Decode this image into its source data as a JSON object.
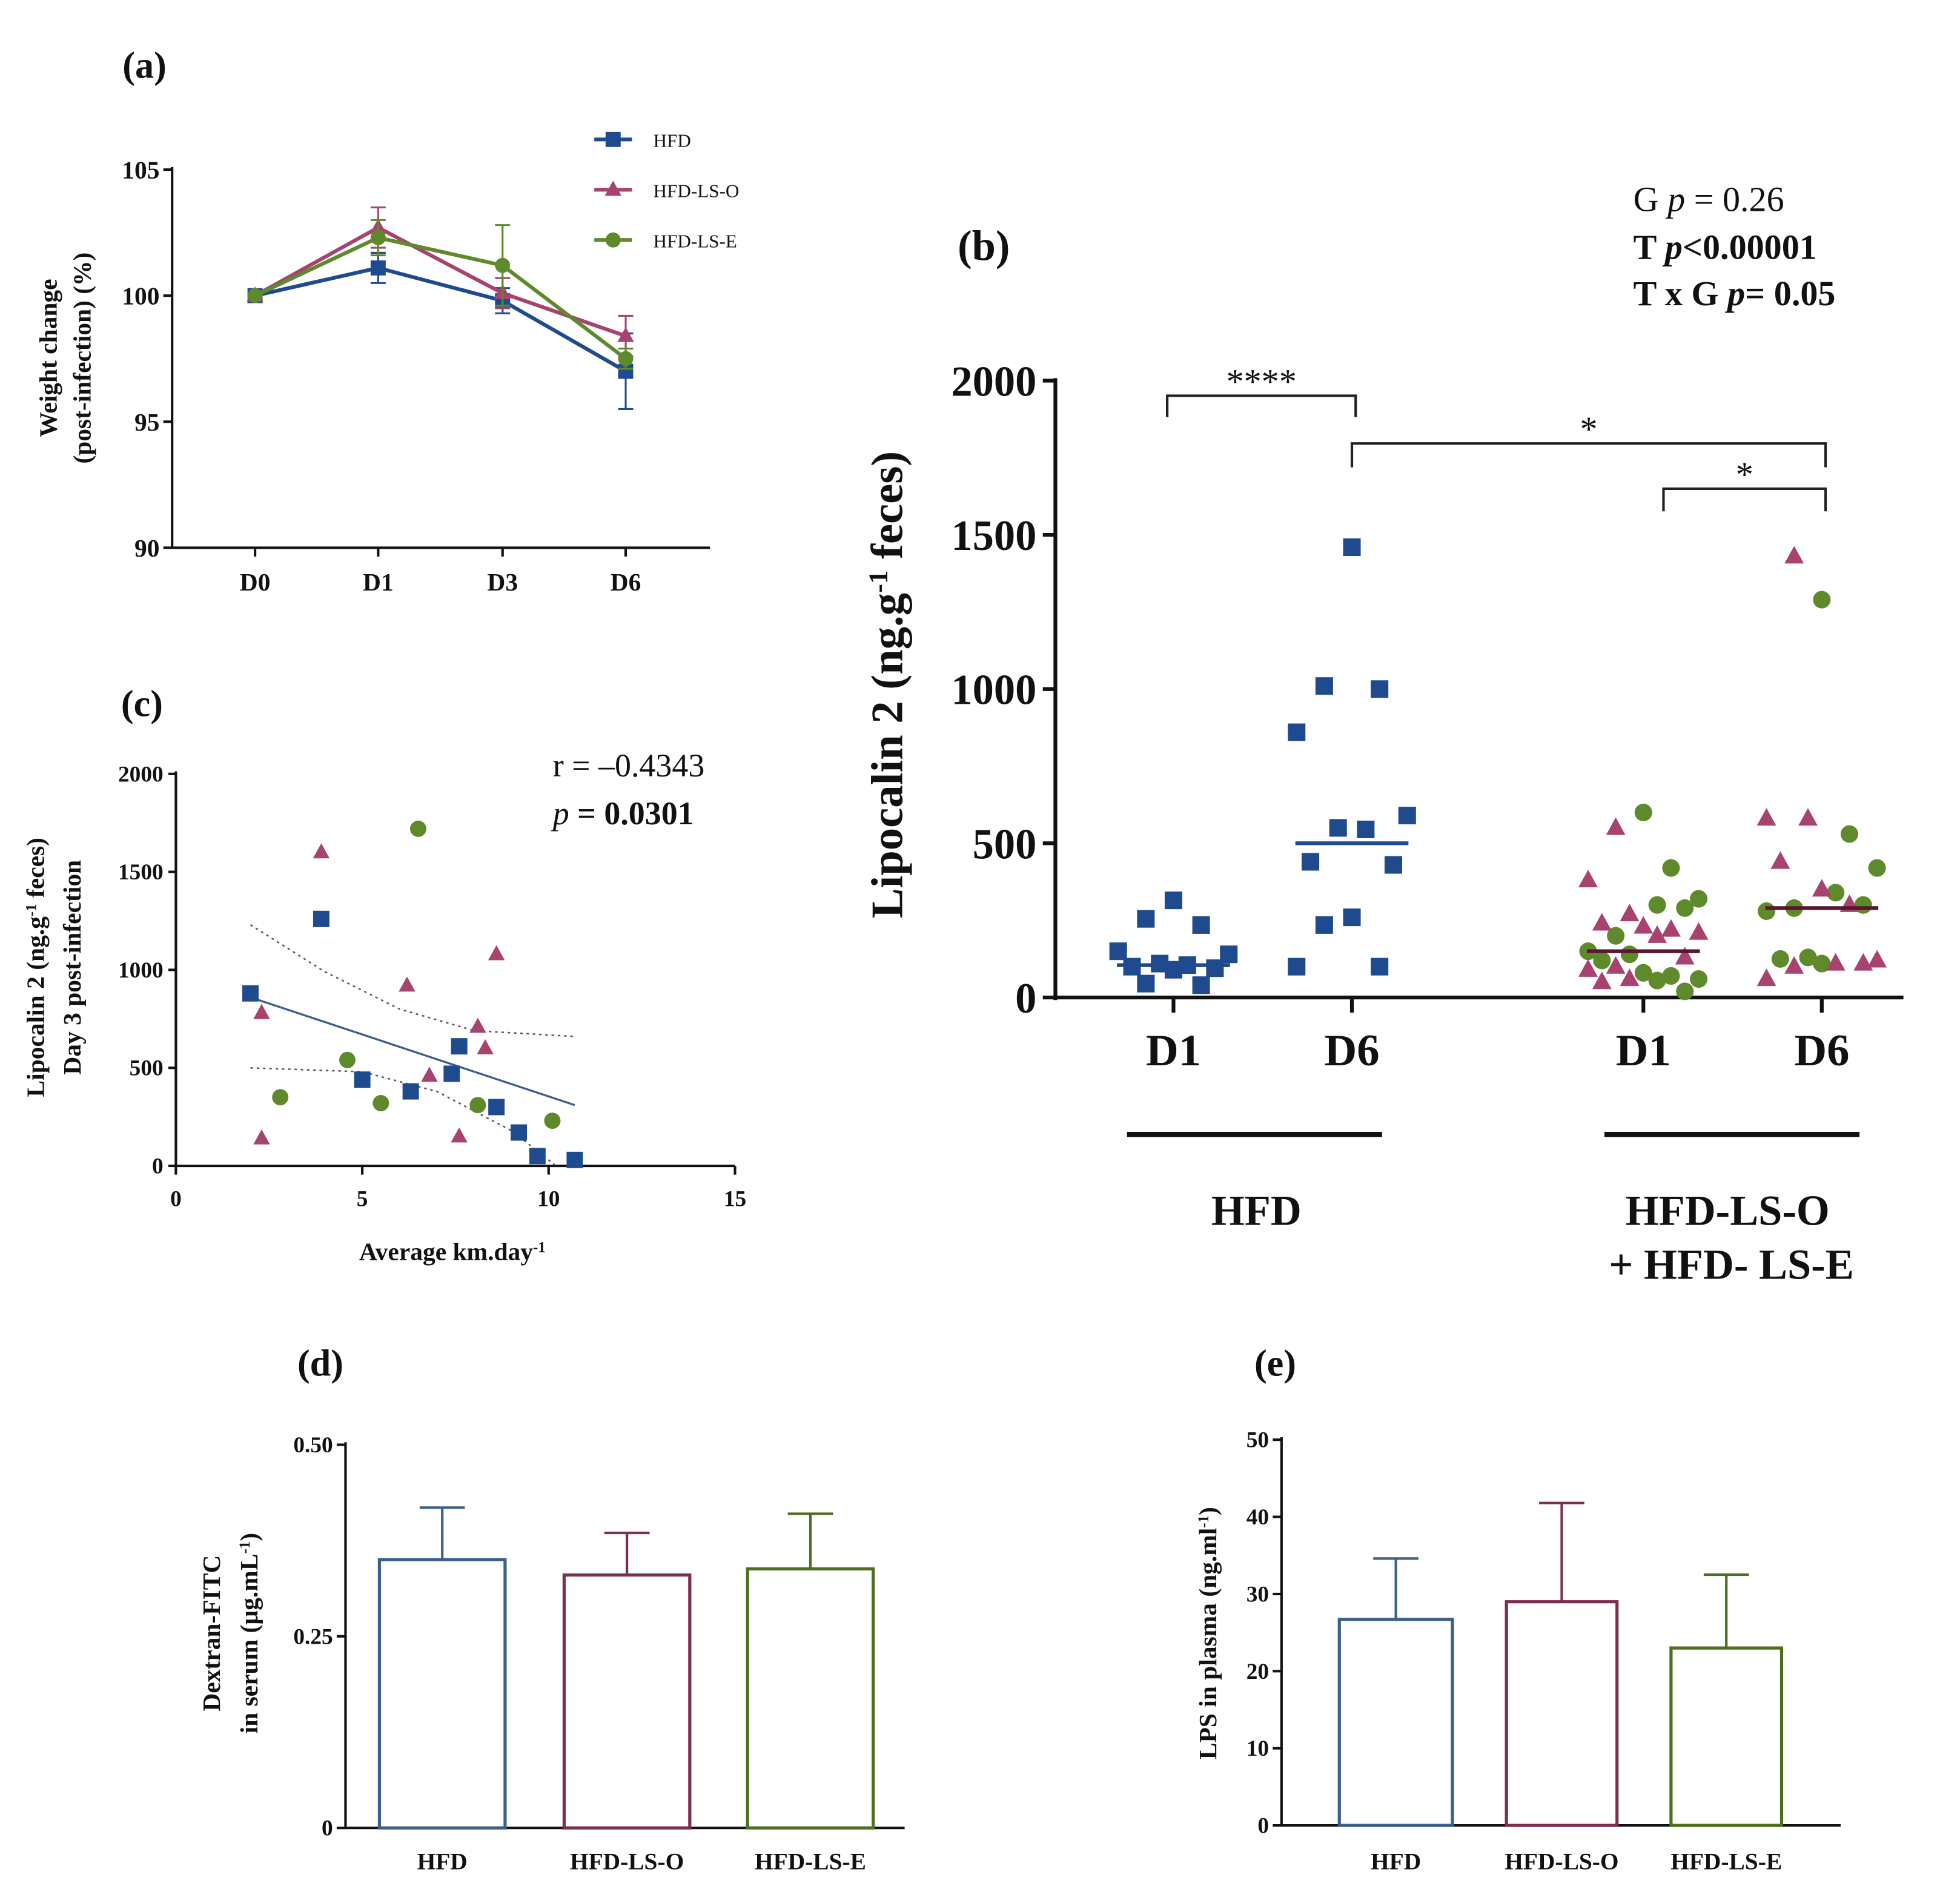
{
  "colors": {
    "hfd": "#1f4b8e",
    "lso": "#a8436f",
    "lse": "#5e8a2c",
    "hfd_bar": "#3b6089",
    "lso_bar": "#7b2f50",
    "lse_bar": "#4f6e1f",
    "axis": "#111111"
  },
  "chart_data": [
    {
      "panel": "(a)",
      "type": "line",
      "categories": [
        "D0",
        "D1",
        "D3",
        "D6"
      ],
      "ylabel_line1": "Weight change",
      "ylabel_line2": "(post-infection) (%)",
      "ylim": [
        90,
        105
      ],
      "yticks": [
        "90",
        "95",
        "100",
        "105"
      ],
      "legend_position": "top-right",
      "series": [
        {
          "name": "HFD",
          "marker": "square",
          "values": [
            100,
            101.1,
            99.8,
            97.0
          ],
          "errors": [
            0,
            0.6,
            0.5,
            1.5
          ]
        },
        {
          "name": "HFD-LS-O",
          "marker": "triangle",
          "values": [
            100,
            102.7,
            100.1,
            98.4
          ],
          "errors": [
            0,
            0.8,
            0.6,
            0.8
          ]
        },
        {
          "name": "HFD-LS-E",
          "marker": "circle",
          "values": [
            100,
            102.3,
            101.2,
            97.5
          ],
          "errors": [
            0,
            0.7,
            1.6,
            0.4
          ]
        }
      ]
    },
    {
      "panel": "(b)",
      "type": "scatter",
      "ylabel_main": "Lipocalin 2 (ng.g",
      "ylabel_sup": "-1",
      "ylabel_end": " feces)",
      "ylim": [
        0,
        2000
      ],
      "yticks": [
        "0",
        "500",
        "1000",
        "1500",
        "2000"
      ],
      "categories": [
        "D1",
        "D6",
        "D1",
        "D6"
      ],
      "groups": [
        "HFD",
        "HFD-LS-O",
        "+ HFD- LS-E"
      ],
      "stats": {
        "g": "G ",
        "g_p": "p",
        "g_val": " = 0.26",
        "t": "T ",
        "t_p": "p",
        "t_val": "<0.00001",
        "txg": "T x G ",
        "txg_p": "p",
        "txg_val": "= 0.05"
      },
      "significance": [
        {
          "label": "****",
          "from": 0,
          "to": 1
        },
        {
          "label": "*",
          "from": 1,
          "to": 3
        },
        {
          "label": "*",
          "from": 2,
          "to": 3
        }
      ],
      "series": [
        {
          "name": "HFD D1",
          "marker": "square",
          "median": 105,
          "values": [
            315,
            255,
            235,
            150,
            140,
            110,
            105,
            100,
            95,
            90,
            45,
            40
          ]
        },
        {
          "name": "HFD D6",
          "marker": "square",
          "median": 500,
          "values": [
            1460,
            1010,
            1000,
            860,
            590,
            550,
            545,
            440,
            430,
            260,
            235,
            100,
            100
          ]
        },
        {
          "name": "LS D1",
          "median": 150,
          "circles": [
            600,
            420,
            320,
            300,
            290,
            200,
            150,
            140,
            120,
            80,
            70,
            60,
            55,
            20
          ],
          "triangles": [
            550,
            380,
            270,
            240,
            230,
            220,
            210,
            200,
            130,
            100,
            90,
            60,
            50
          ]
        },
        {
          "name": "LS D6",
          "median": 290,
          "circles": [
            1290,
            530,
            420,
            340,
            300,
            290,
            280,
            130,
            125,
            110
          ],
          "triangles": [
            1430,
            580,
            580,
            440,
            350,
            300,
            120,
            110,
            110,
            100,
            60
          ]
        }
      ]
    },
    {
      "panel": "(c)",
      "type": "scatter",
      "annotation_r": "r = –0.4343",
      "annotation_p": "p",
      "annotation_pval": " = 0.0301",
      "xlabel_main": "Average km.day",
      "xlabel_sup": "-1",
      "ylabel1_main": "Lipocalin 2 (ng.g",
      "ylabel1_sup": "-1",
      "ylabel1_end": " feces)",
      "ylabel2": "Day 3 post-infection",
      "xlim": [
        0,
        15
      ],
      "ylim": [
        0,
        2000
      ],
      "xticks": [
        "0",
        "5",
        "10",
        "15"
      ],
      "yticks": [
        "0",
        "500",
        "1000",
        "1500",
        "2000"
      ],
      "squares": [
        [
          2,
          880
        ],
        [
          3.9,
          1260
        ],
        [
          5,
          440
        ],
        [
          6.3,
          380
        ],
        [
          7.4,
          470
        ],
        [
          7.6,
          610
        ],
        [
          8.6,
          300
        ],
        [
          9.2,
          170
        ],
        [
          9.7,
          50
        ],
        [
          10.7,
          30
        ]
      ],
      "triangles": [
        [
          2.3,
          780
        ],
        [
          2.3,
          140
        ],
        [
          3.9,
          1600
        ],
        [
          6.2,
          920
        ],
        [
          6.8,
          460
        ],
        [
          7.6,
          150
        ],
        [
          8.1,
          710
        ],
        [
          8.3,
          600
        ],
        [
          8.6,
          1080
        ]
      ],
      "circles": [
        [
          2.8,
          350
        ],
        [
          4.6,
          540
        ],
        [
          5.5,
          320
        ],
        [
          6.5,
          1720
        ],
        [
          8.1,
          310
        ],
        [
          10.1,
          230
        ]
      ],
      "fit": [
        [
          2,
          860
        ],
        [
          10.7,
          310
        ]
      ],
      "ci_upper": [
        [
          2,
          1230
        ],
        [
          4,
          990
        ],
        [
          6,
          800
        ],
        [
          8,
          690
        ],
        [
          10.7,
          660
        ]
      ],
      "ci_lower": [
        [
          2,
          500
        ],
        [
          5,
          480
        ],
        [
          7,
          380
        ],
        [
          9,
          180
        ],
        [
          10.2,
          0
        ]
      ]
    },
    {
      "panel": "(d)",
      "type": "bar",
      "ylabel_line1": "Dextran-FITC",
      "ylabel_line2_main": "in serum (µg.mL",
      "ylabel_line2_sup": "-1",
      "ylabel_line2_end": ")",
      "ylim": [
        0,
        0.5
      ],
      "yticks": [
        "0",
        "0.25",
        "0.50"
      ],
      "categories": [
        "HFD",
        "HFD-LS-O",
        "HFD-LS-E"
      ],
      "values": [
        0.35,
        0.33,
        0.338
      ],
      "errors_upper": [
        0.418,
        0.385,
        0.41
      ]
    },
    {
      "panel": "(e)",
      "type": "bar",
      "ylabel_main": "LPS in plasma (ng.ml",
      "ylabel_sup": "-1",
      "ylabel_end": ")",
      "ylim": [
        0,
        50
      ],
      "yticks": [
        "0",
        "10",
        "20",
        "30",
        "40",
        "50"
      ],
      "categories": [
        "HFD",
        "HFD-LS-O",
        "HFD-LS-E"
      ],
      "values": [
        26.7,
        29.0,
        23.0
      ],
      "errors_upper": [
        34.6,
        41.8,
        32.5
      ]
    }
  ]
}
